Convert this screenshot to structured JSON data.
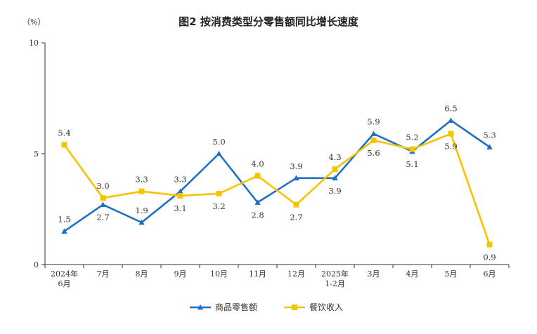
{
  "chart_data": {
    "type": "line",
    "title": "图2  按消费类型分零售额同比增长速度",
    "ylabel": "（%）",
    "xlabel": "",
    "ylim": [
      0,
      10
    ],
    "yticks": [
      "0",
      "5",
      "10"
    ],
    "ytick_values": [
      0,
      5,
      10
    ],
    "categories": [
      [
        "2024年",
        "6月"
      ],
      [
        "7月"
      ],
      [
        "8月"
      ],
      [
        "9月"
      ],
      [
        "10月"
      ],
      [
        "11月"
      ],
      [
        "12月"
      ],
      [
        "2025年",
        "1-2月"
      ],
      [
        "3月"
      ],
      [
        "4月"
      ],
      [
        "5月"
      ],
      [
        "6月"
      ]
    ],
    "series": [
      {
        "name": "商品零售额",
        "color": "#1f6fc5",
        "marker": "triangle",
        "values": [
          1.5,
          2.7,
          1.9,
          3.3,
          5.0,
          2.8,
          3.9,
          3.9,
          5.9,
          5.1,
          6.5,
          5.3
        ],
        "labels": [
          "1.5",
          "2.7",
          "1.9",
          "3.3",
          "5.0",
          "2.8",
          "3.9",
          "3.9",
          "5.9",
          "5.1",
          "6.5",
          "5.3"
        ],
        "label_pos": [
          "above",
          "below",
          "above",
          "above",
          "above",
          "below",
          "above",
          "below",
          "above",
          "below",
          "above",
          "above"
        ]
      },
      {
        "name": "餐饮收入",
        "color": "#f5c400",
        "marker": "square",
        "values": [
          5.4,
          3.0,
          3.3,
          3.1,
          3.2,
          4.0,
          2.7,
          4.3,
          5.6,
          5.2,
          5.9,
          0.9
        ],
        "labels": [
          "5.4",
          "3.0",
          "3.3",
          "3.1",
          "3.2",
          "4.0",
          "2.7",
          "4.3",
          "5.6",
          "5.2",
          "5.9",
          "0.9"
        ],
        "label_pos": [
          "above",
          "above",
          "above",
          "below",
          "below",
          "above",
          "below",
          "above",
          "below",
          "above",
          "below",
          "below"
        ]
      }
    ],
    "legend": "bottom-center",
    "grid": false
  }
}
